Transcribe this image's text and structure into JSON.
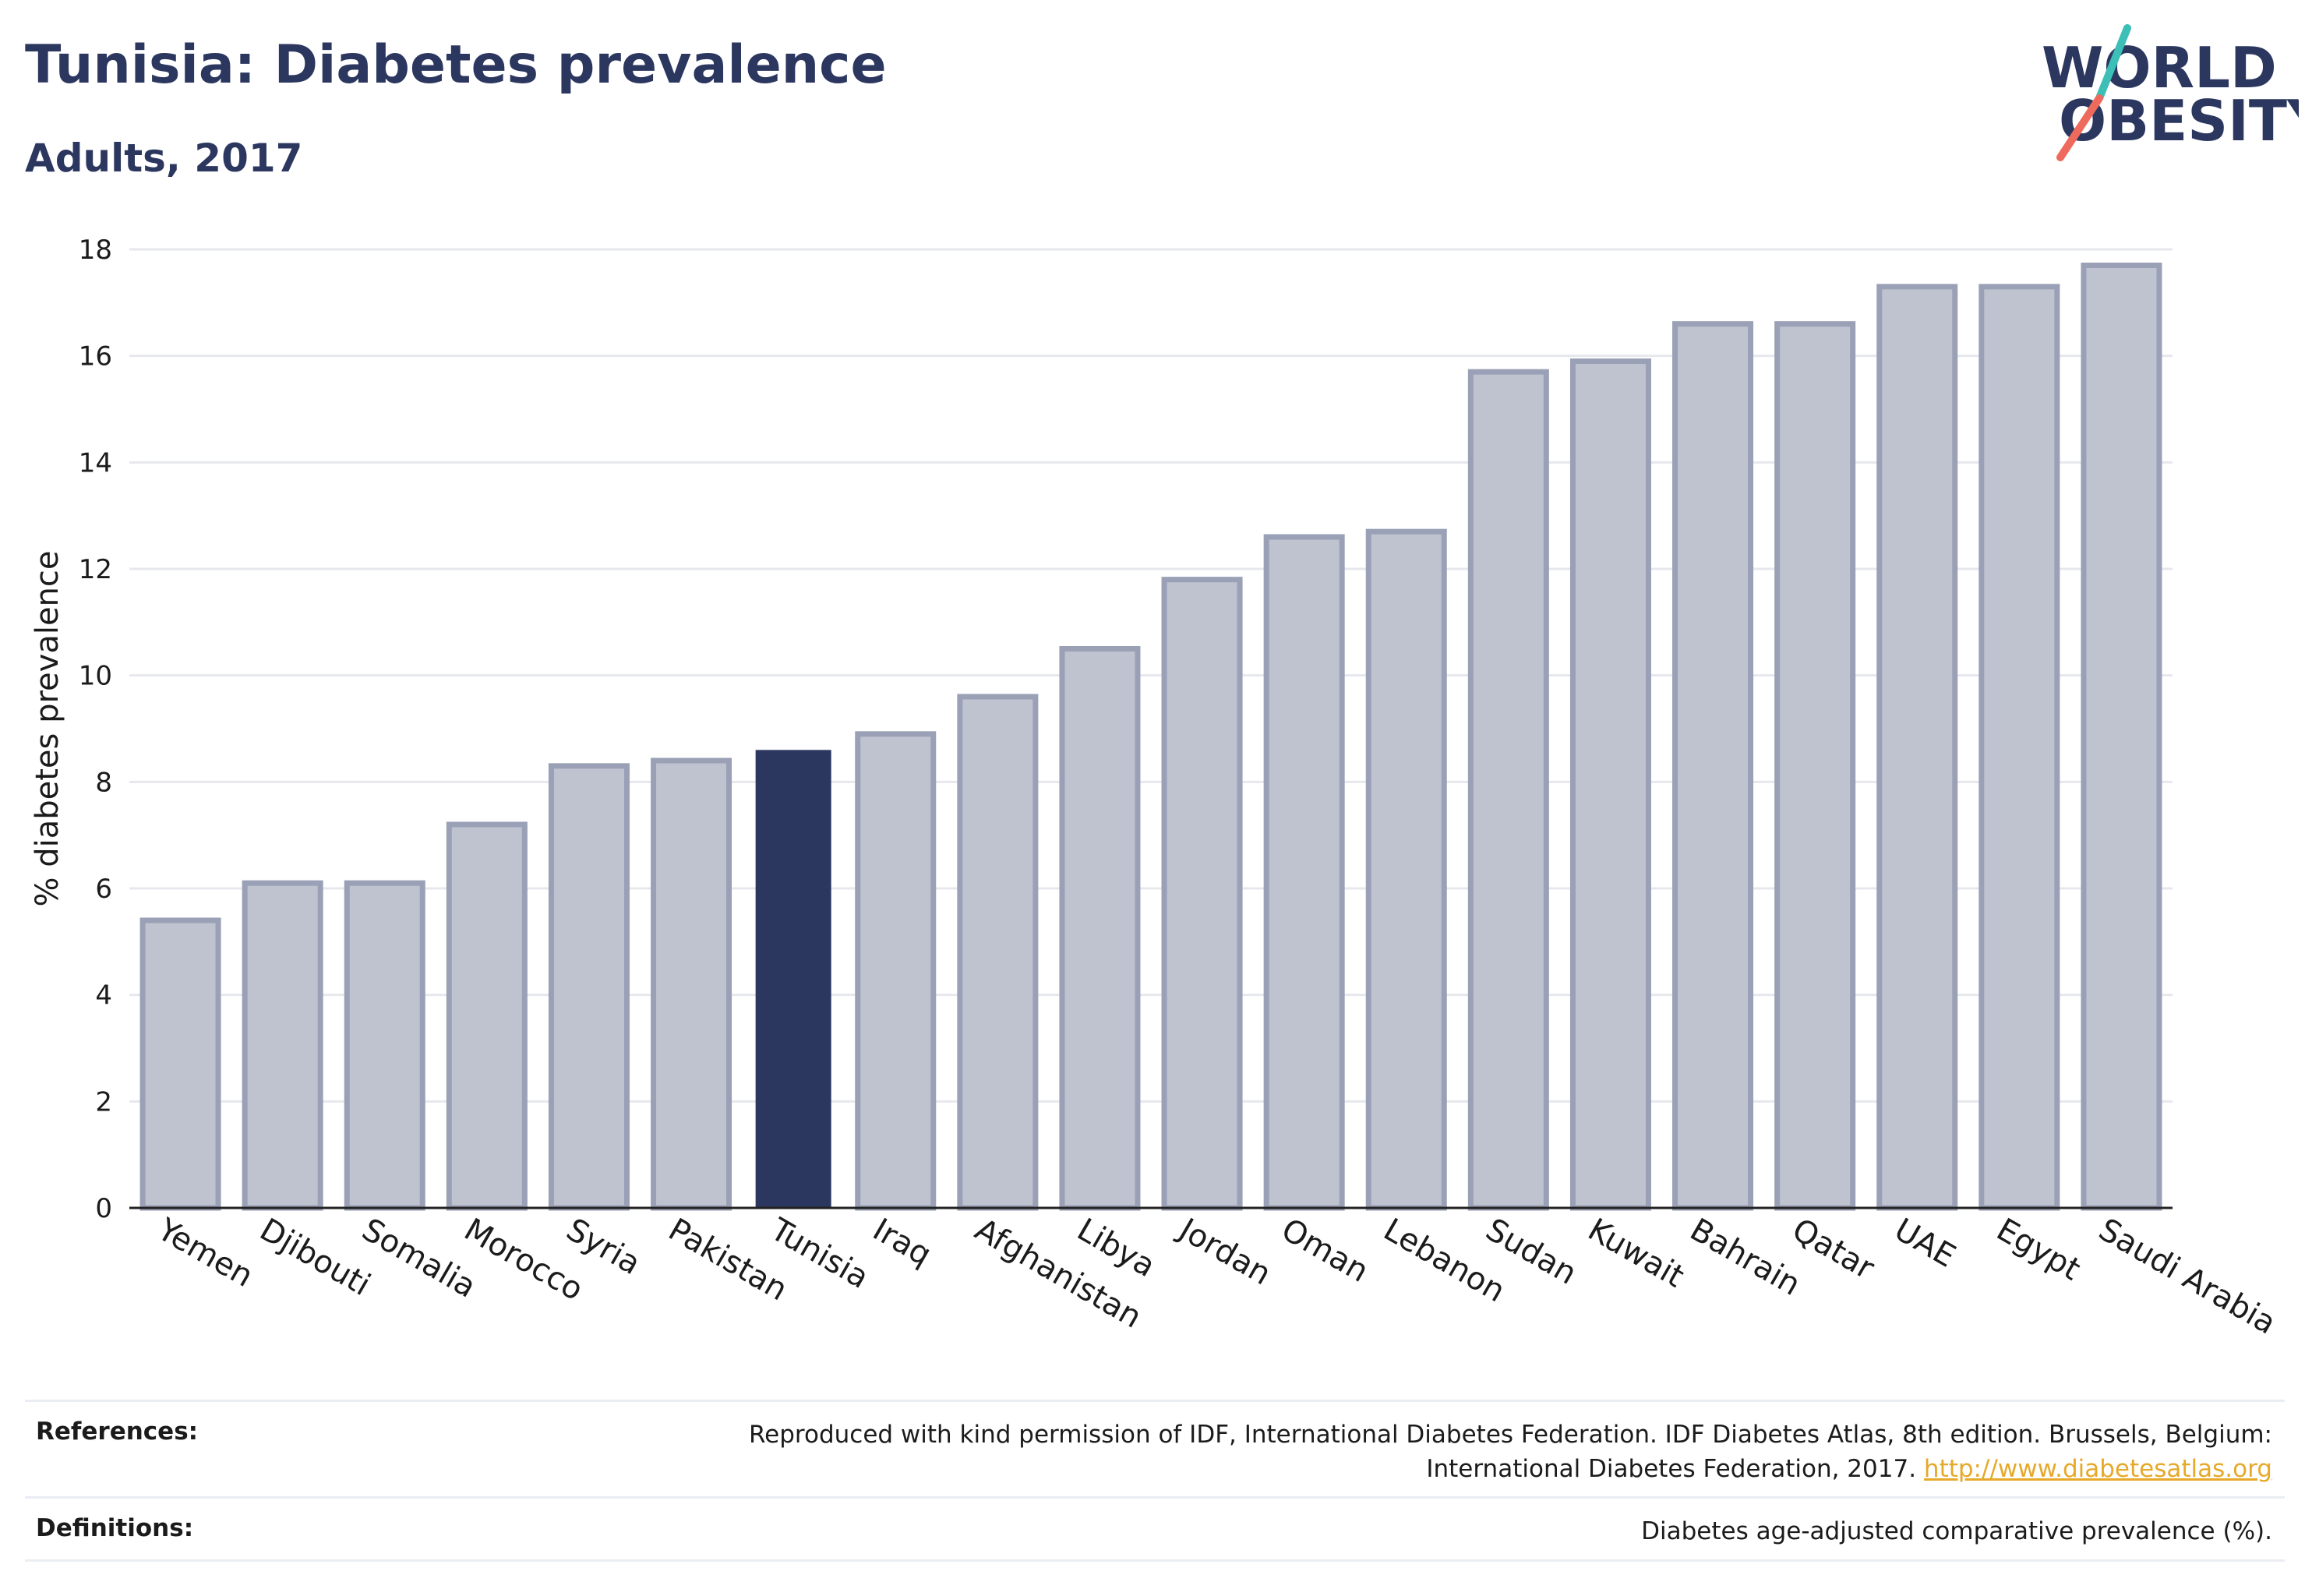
{
  "header": {
    "title": "Tunisia: Diabetes prevalence",
    "subtitle": "Adults, 2017"
  },
  "logo": {
    "line1": "WORLD",
    "line2": "OBESITY",
    "text_color": "#2c375f",
    "slash_top_color": "#3bbfb6",
    "slash_bottom_color": "#ee6a5c"
  },
  "chart_data": {
    "type": "bar",
    "title": "Tunisia: Diabetes prevalence",
    "subtitle": "Adults, 2017",
    "ylabel": "% diabetes prevalence",
    "xlabel": "",
    "ylim": [
      0,
      18
    ],
    "yticks": [
      0,
      2,
      4,
      6,
      8,
      10,
      12,
      14,
      16,
      18
    ],
    "grid": true,
    "categories": [
      "Yemen",
      "Djibouti",
      "Somalia",
      "Morocco",
      "Syria",
      "Pakistan",
      "Tunisia",
      "Iraq",
      "Afghanistan",
      "Libya",
      "Jordan",
      "Oman",
      "Lebanon",
      "Sudan",
      "Kuwait",
      "Bahrain",
      "Qatar",
      "UAE",
      "Egypt",
      "Saudi Arabia"
    ],
    "values": [
      5.4,
      6.1,
      6.1,
      7.2,
      8.3,
      8.4,
      8.6,
      8.9,
      9.6,
      10.5,
      11.8,
      12.6,
      12.7,
      15.7,
      15.9,
      16.6,
      16.6,
      17.3,
      17.3,
      17.7
    ],
    "highlight": "Tunisia",
    "colors": {
      "bar_fill": "#bfc3cf",
      "bar_stroke": "#9aa0b6",
      "highlight": "#2c375f",
      "grid": "#e6e8ee",
      "axis": "#222222"
    }
  },
  "footer": {
    "references_label": "References:",
    "references_text_line1": "Reproduced with kind permission of IDF, International Diabetes Federation. IDF Diabetes Atlas, 8th edition. Brussels, Belgium:",
    "references_text_line2": "International Diabetes Federation, 2017.",
    "references_link": "http://www.diabetesatlas.org",
    "definitions_label": "Definitions:",
    "definitions_text": "Diabetes age-adjusted comparative prevalence (%)."
  }
}
